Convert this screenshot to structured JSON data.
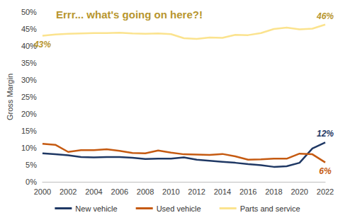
{
  "chart_data": {
    "type": "line",
    "title": "Errr... what's going on here?!",
    "y_label": "Gross Margin",
    "x": [
      2000,
      2001,
      2002,
      2003,
      2004,
      2005,
      2006,
      2007,
      2008,
      2009,
      2010,
      2011,
      2012,
      2013,
      2014,
      2015,
      2016,
      2017,
      2018,
      2019,
      2020,
      2021,
      2022
    ],
    "xlim": [
      2000,
      2022
    ],
    "xticks": [
      2000,
      2002,
      2004,
      2006,
      2008,
      2010,
      2012,
      2014,
      2016,
      2018,
      2020,
      2022
    ],
    "ylim": [
      0,
      50
    ],
    "yticks": [
      {
        "value": 0,
        "label": "0%"
      },
      {
        "value": 5,
        "label": "5%"
      },
      {
        "value": 10,
        "label": "10%"
      },
      {
        "value": 15,
        "label": "15%"
      },
      {
        "value": 20,
        "label": "20%"
      },
      {
        "value": 25,
        "label": "25%"
      },
      {
        "value": 30,
        "label": "30%"
      },
      {
        "value": 35,
        "label": "35%"
      },
      {
        "value": 40,
        "label": "40%"
      },
      {
        "value": 45,
        "label": "45%"
      },
      {
        "value": 50,
        "label": "50%"
      }
    ],
    "grid": false,
    "legend": "bottom",
    "series": [
      {
        "name": "New vehicle",
        "color": "#1f3864",
        "values": [
          8.4,
          8.1,
          7.8,
          7.3,
          7.2,
          7.3,
          7.3,
          7.1,
          6.7,
          6.8,
          6.8,
          7.2,
          6.5,
          6.2,
          5.9,
          5.6,
          5.2,
          4.9,
          4.4,
          4.6,
          5.6,
          9.8,
          11.6
        ],
        "value_labels": [
          null,
          null,
          null,
          null,
          null,
          null,
          null,
          null,
          null,
          null,
          null,
          null,
          null,
          null,
          null,
          null,
          null,
          null,
          null,
          null,
          null,
          null,
          "12%"
        ]
      },
      {
        "name": "Used vehicle",
        "color": "#c55a11",
        "values": [
          11.2,
          10.9,
          8.8,
          9.3,
          9.3,
          9.6,
          9.1,
          8.5,
          8.4,
          9.2,
          8.6,
          8.1,
          8.0,
          7.9,
          8.2,
          7.5,
          6.5,
          6.6,
          6.8,
          6.8,
          8.3,
          8.1,
          5.7
        ],
        "value_labels": [
          null,
          null,
          null,
          null,
          null,
          null,
          null,
          null,
          null,
          null,
          null,
          null,
          null,
          null,
          null,
          null,
          null,
          null,
          null,
          null,
          null,
          null,
          "6%"
        ]
      },
      {
        "name": "Parts and service",
        "color": "#fbe38e",
        "values": [
          43.0,
          43.4,
          43.6,
          43.7,
          43.8,
          43.8,
          43.9,
          43.7,
          43.6,
          43.7,
          43.5,
          42.3,
          42.1,
          42.5,
          42.4,
          43.3,
          43.2,
          43.8,
          45.0,
          45.4,
          44.9,
          45.1,
          46.3
        ],
        "value_labels": [
          "43%",
          null,
          null,
          null,
          null,
          null,
          null,
          null,
          null,
          null,
          null,
          null,
          null,
          null,
          null,
          null,
          null,
          null,
          null,
          null,
          null,
          null,
          "46%"
        ]
      }
    ]
  }
}
